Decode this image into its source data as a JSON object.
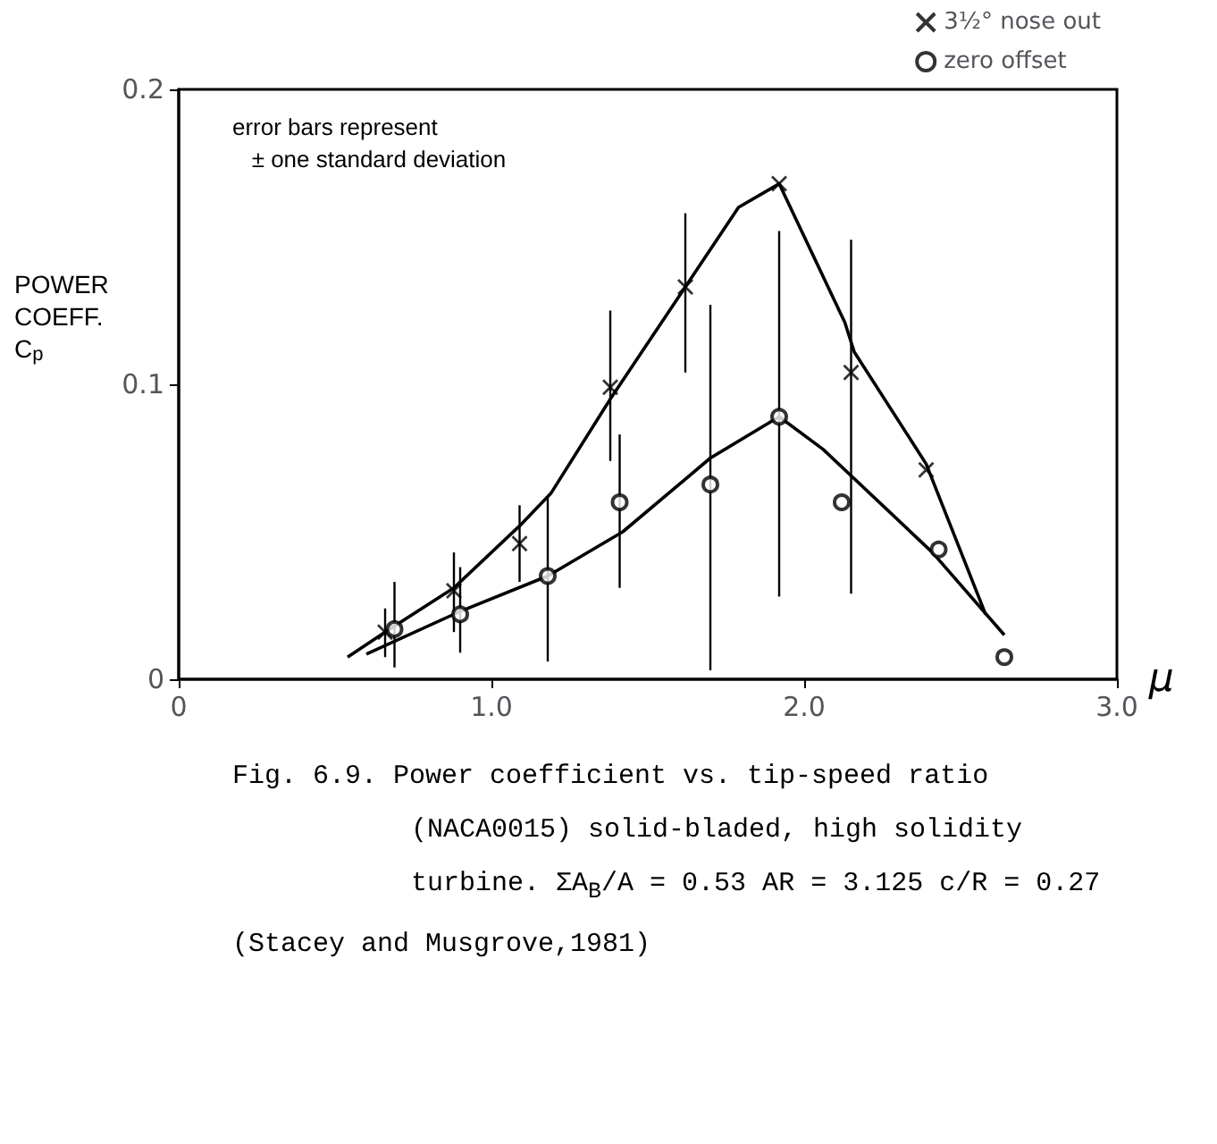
{
  "chart_data": {
    "type": "scatter",
    "ylabel": "POWER COEFF. C$_{p}$",
    "xlabel": "μ",
    "xlim": [
      0,
      3
    ],
    "xticks": [
      0,
      {
        "value": 1,
        "label": "1.0"
      },
      {
        "value": 2,
        "label": "2.0"
      },
      {
        "value": 3,
        "label": "3.0"
      }
    ],
    "ylim": [
      0,
      0.2
    ],
    "yticks": [
      0,
      0.1,
      0.2
    ],
    "grid": false,
    "legend": "top right",
    "series": [
      {
        "name": "3½° nose out",
        "marker": "cross",
        "color": "#000000",
        "x": [
          0.66,
          0.88,
          1.09,
          1.38,
          1.62,
          1.92,
          2.15,
          2.39
        ],
        "values": [
          0.016,
          0.03,
          0.046,
          0.099,
          0.133,
          0.168,
          0.104,
          0.071
        ],
        "errors": [
          [
            0.0075,
            0.024
          ],
          [
            0.016,
            0.043
          ],
          [
            0.033,
            0.059
          ],
          [
            0.074,
            0.125
          ],
          [
            0.104,
            0.158
          ],
          null,
          [
            0.029,
            0.149
          ],
          null
        ]
      },
      {
        "name": "zero offset",
        "marker": "circle",
        "color": "#000000",
        "x": [
          0.69,
          0.9,
          1.18,
          1.41,
          1.7,
          1.92,
          2.12,
          2.43,
          2.64
        ],
        "values": [
          0.017,
          0.022,
          0.035,
          0.06,
          0.066,
          0.089,
          0.06,
          0.044,
          0.0075
        ],
        "errors": [
          [
            0.004,
            0.033
          ],
          [
            0.009,
            0.038
          ],
          [
            0.006,
            0.062
          ],
          [
            0.031,
            0.083
          ],
          [
            0.003,
            0.127
          ],
          [
            0.028,
            0.152
          ],
          null,
          null,
          null
        ]
      },
      {
        "type": "line",
        "marker": "none",
        "color": "#000000",
        "x": [
          0.54,
          0.66,
          0.88,
          1.09,
          1.19,
          1.38,
          1.62,
          1.79,
          1.92,
          2.13,
          2.16,
          2.39,
          2.58
        ],
        "values": [
          0.0075,
          0.016,
          0.031,
          0.052,
          0.063,
          0.095,
          0.133,
          0.16,
          0.168,
          0.121,
          0.111,
          0.073,
          0.022
        ]
      },
      {
        "type": "line",
        "marker": "none",
        "color": "#000000",
        "x": [
          0.6,
          0.9,
          1.18,
          1.42,
          1.7,
          1.92,
          2.06,
          2.41,
          2.64
        ],
        "values": [
          0.0085,
          0.023,
          0.035,
          0.05,
          0.075,
          0.089,
          0.078,
          0.043,
          0.015
        ]
      }
    ],
    "annotations": [
      "error bars represent ± one standard deviation",
      "Fig. 6.9.   Power coefficient vs. tip-speed ratio",
      "(NACA0015)   solid-bladed, high solidity",
      "turbine.   ΣA$_{B}$/A = 0.53   AR = 3.125   c/R = 0.27",
      "(Stacey and Musgrove,1981)"
    ]
  }
}
